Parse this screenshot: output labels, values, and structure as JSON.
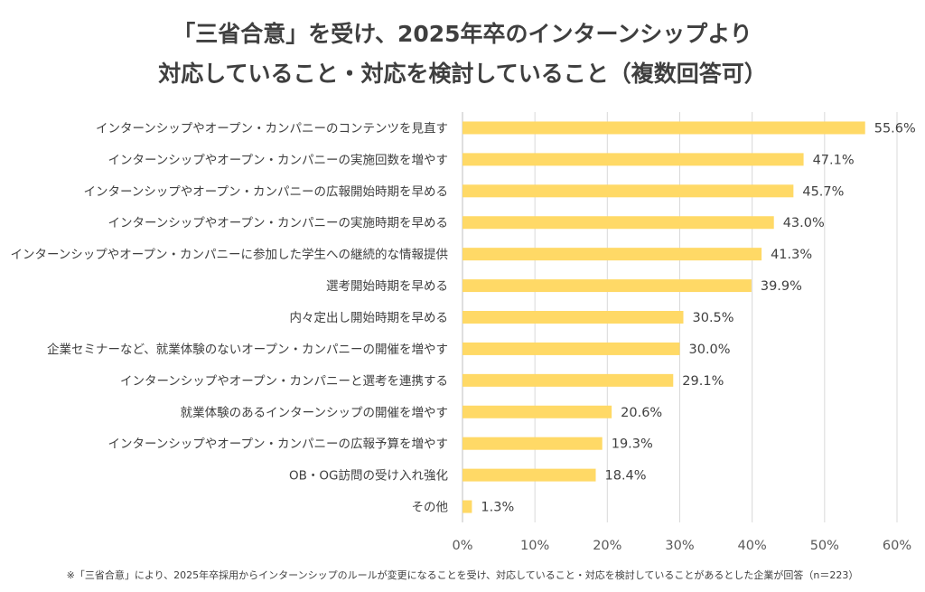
{
  "chart_data": {
    "type": "bar",
    "orientation": "horizontal",
    "title": "「三省合意」を受け、2025年卒のインターンシップより",
    "subtitle": "対応していること・対応を検討していること（複数回答可）",
    "categories": [
      "インターンシップやオープン・カンパニーのコンテンツを見直す",
      "インターンシップやオープン・カンパニーの実施回数を増やす",
      "インターンシップやオープン・カンパニーの広報開始時期を早める",
      "インターンシップやオープン・カンパニーの実施時期を早める",
      "インターンシップやオープン・カンパニーに参加した学生への継続的な情報提供",
      "選考開始時期を早める",
      "内々定出し開始時期を早める",
      "企業セミナーなど、就業体験のないオープン・カンパニーの開催を増やす",
      "インターンシップやオープン・カンパニーと選考を連携する",
      "就業体験のあるインターンシップの開催を増やす",
      "インターンシップやオープン・カンパニーの広報予算を増やす",
      "OB・OG訪問の受け入れ強化",
      "その他"
    ],
    "values": [
      55.6,
      47.1,
      45.7,
      43.0,
      41.3,
      39.9,
      30.5,
      30.0,
      29.1,
      20.6,
      19.3,
      18.4,
      1.3
    ],
    "value_labels": [
      "55.6%",
      "47.1%",
      "45.7%",
      "43.0%",
      "41.3%",
      "39.9%",
      "30.5%",
      "30.0%",
      "29.1%",
      "20.6%",
      "19.3%",
      "18.4%",
      "1.3%"
    ],
    "xlabel": "",
    "ylabel": "",
    "xlim": [
      0,
      60
    ],
    "x_ticks": [
      0,
      10,
      20,
      30,
      40,
      50,
      60
    ],
    "x_tick_labels": [
      "0%",
      "10%",
      "20%",
      "30%",
      "40%",
      "50%",
      "60%"
    ],
    "grid": true,
    "legend": "none",
    "bar_color": "#FFD966",
    "footnote": "※「三省合意」により、2025年卒採用からインターンシップのルールが変更になることを受け、対応していること・対応を検討していることがあるとした企業が回答（n＝223）"
  }
}
